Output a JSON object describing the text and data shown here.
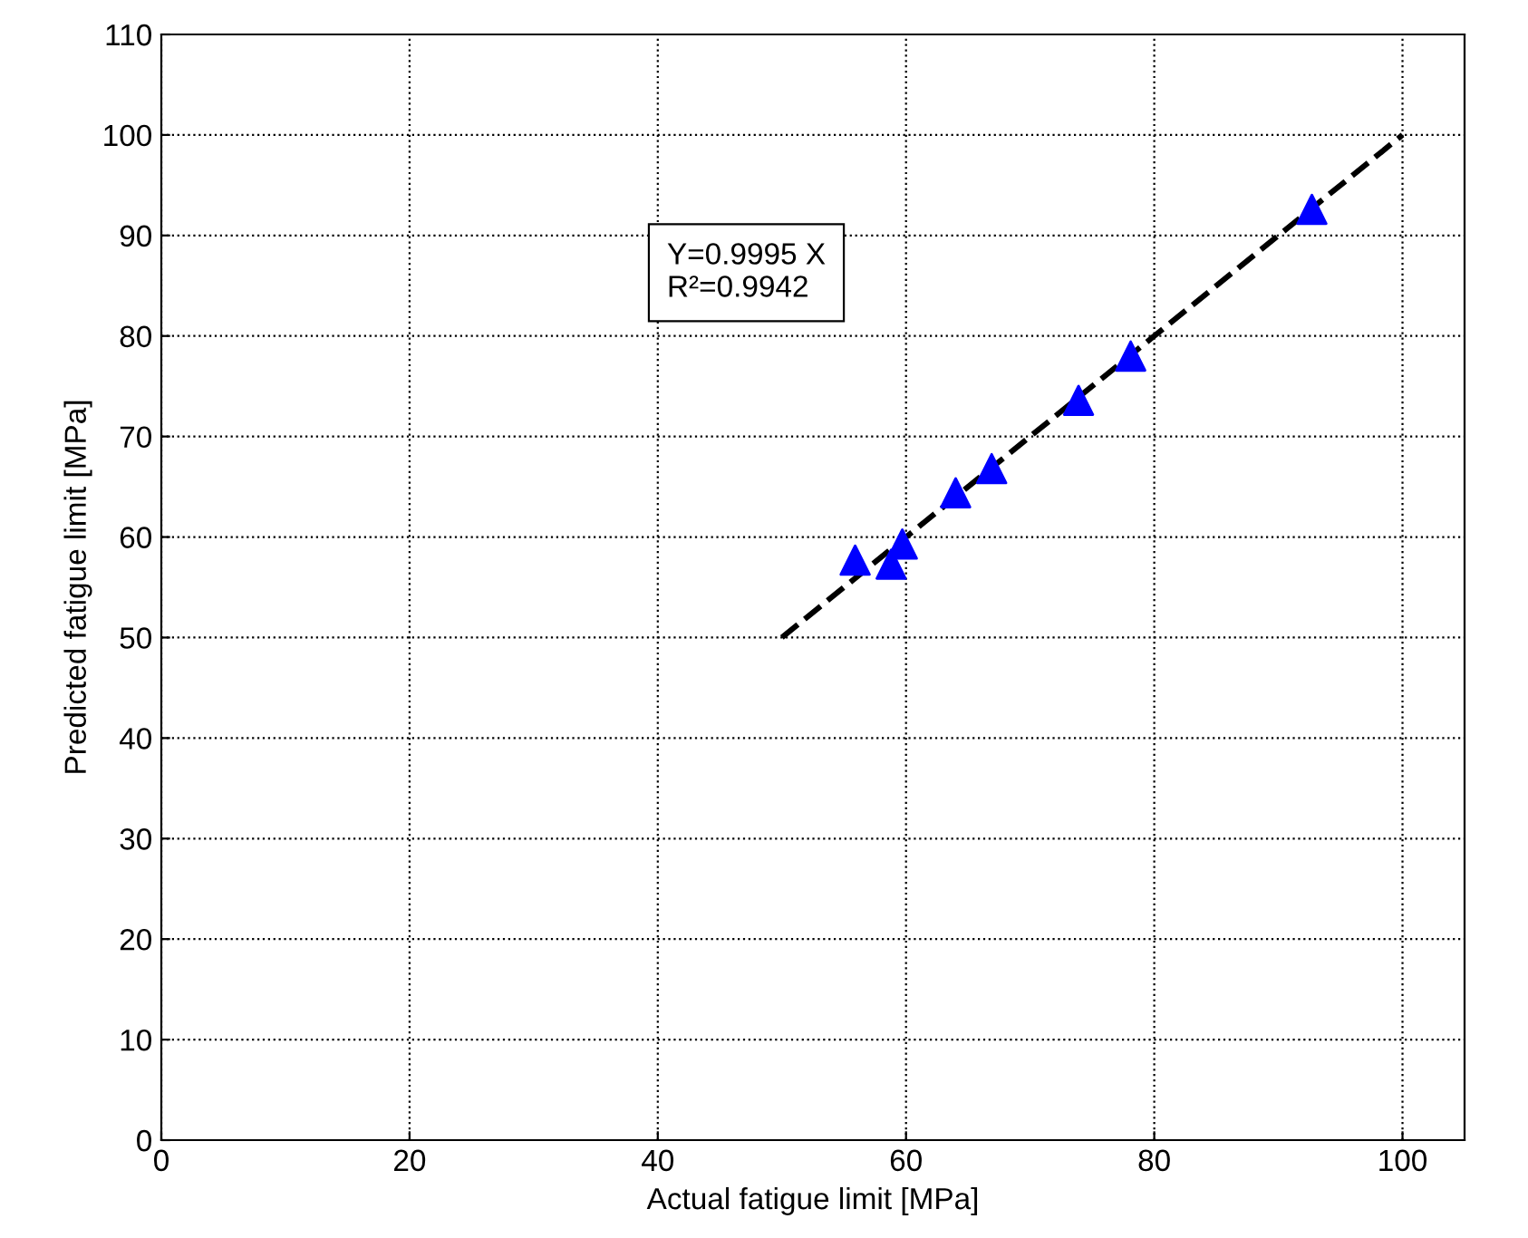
{
  "chart_data": {
    "type": "scatter",
    "xlabel": "Actual fatigue limit [MPa]",
    "ylabel": "Predicted fatigue limit [MPa]",
    "xlim": [
      0,
      105
    ],
    "ylim": [
      0,
      110
    ],
    "xticks": [
      0,
      20,
      40,
      60,
      80,
      100
    ],
    "yticks": [
      0,
      10,
      20,
      30,
      40,
      50,
      60,
      70,
      80,
      90,
      100,
      110
    ],
    "grid": true,
    "annotations": [
      "Y=0.9995 X\nR²=0.9942"
    ],
    "series": [
      {
        "color": "#0000ff",
        "marker": "triangle",
        "x": [
          55.9,
          58.8,
          59.7,
          64.0,
          66.9,
          73.9,
          78.1,
          92.7
        ],
        "values": [
          57.7,
          57.3,
          59.3,
          64.4,
          66.8,
          73.6,
          78.0,
          92.6
        ]
      },
      {
        "type": "line",
        "color": "#000000",
        "marker": "none",
        "line_style": "dashed",
        "x": [
          50,
          100
        ],
        "values": [
          50,
          100
        ]
      }
    ]
  }
}
